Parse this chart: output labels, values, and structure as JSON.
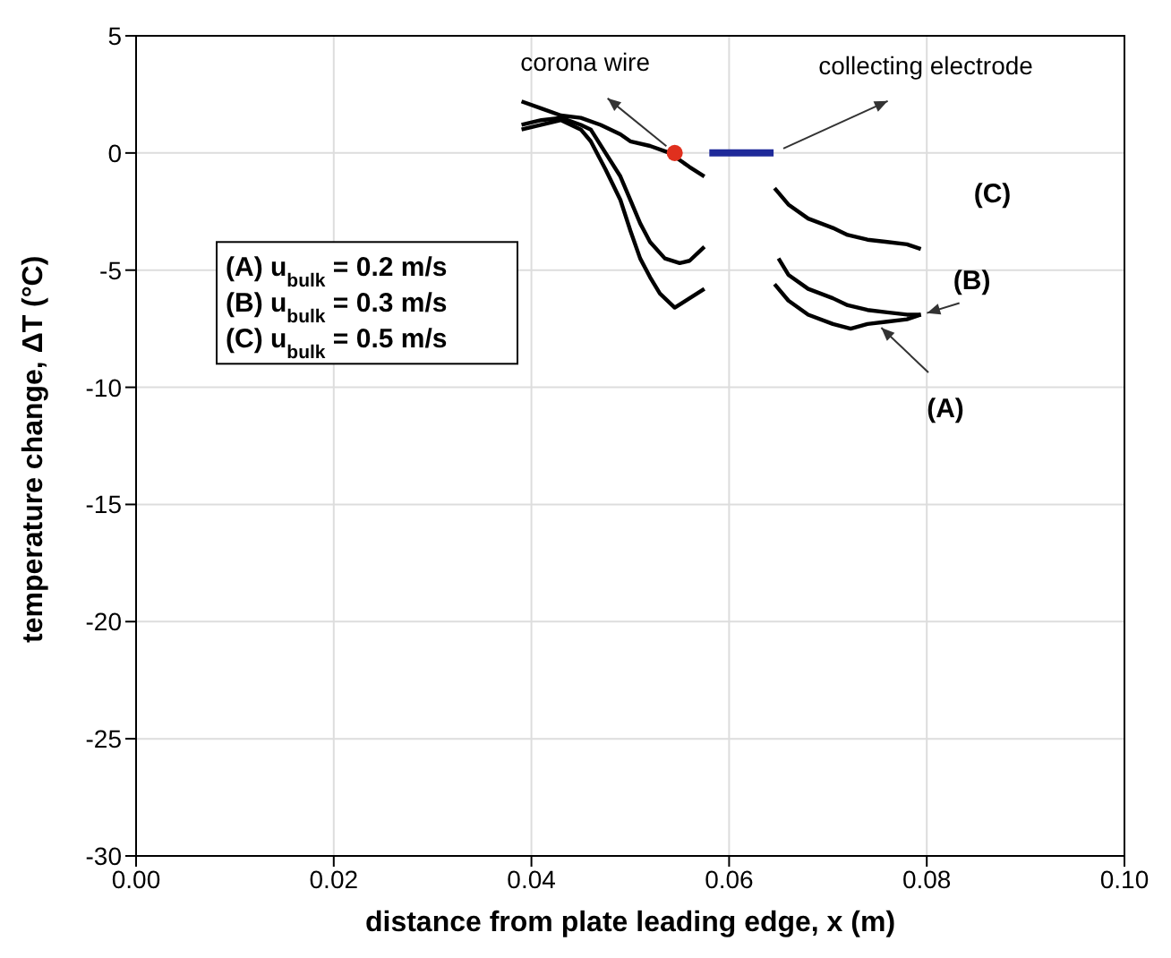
{
  "chart_data": {
    "type": "line",
    "xlabel": "distance from plate leading edge, x (m)",
    "ylabel": "temperature change, ΔT (°C)",
    "xlim": [
      0,
      0.1
    ],
    "ylim": [
      -30,
      5
    ],
    "xticks": [
      {
        "value": 0,
        "label": "0.00"
      },
      {
        "value": 0.02,
        "label": "0.02"
      },
      {
        "value": 0.04,
        "label": "0.04"
      },
      {
        "value": 0.06,
        "label": "0.06"
      },
      {
        "value": 0.08,
        "label": "0.08"
      },
      {
        "value": 0.1,
        "label": "0.10"
      }
    ],
    "yticks": [
      -30,
      -25,
      -20,
      -15,
      -10,
      -5,
      0,
      5
    ],
    "grid": true,
    "legend": false,
    "marker": "none",
    "line_style": "solid",
    "series": [
      {
        "color": "#000000",
        "x": [
          0.039,
          0.041,
          0.043,
          0.045,
          0.046,
          0.0475,
          0.049,
          0.05,
          0.051,
          0.052,
          0.053,
          0.0545,
          0.056,
          0.0575,
          0.061,
          0.0646,
          0.066,
          0.068,
          0.0705,
          0.0723,
          0.074,
          0.076,
          0.078,
          0.0794
        ],
        "values": [
          1.0,
          1.2,
          1.4,
          1.0,
          0.5,
          -0.7,
          -2.0,
          -3.3,
          -4.5,
          -5.3,
          -6.0,
          -6.6,
          -6.2,
          -5.8,
          null,
          -5.6,
          -6.3,
          -6.9,
          -7.3,
          -7.5,
          -7.3,
          -7.2,
          -7.1,
          -6.9
        ]
      },
      {
        "color": "#000000",
        "x": [
          0.039,
          0.041,
          0.043,
          0.045,
          0.046,
          0.0475,
          0.049,
          0.05,
          0.051,
          0.052,
          0.0535,
          0.055,
          0.056,
          0.0575,
          0.061,
          0.065,
          0.066,
          0.068,
          0.0705,
          0.072,
          0.074,
          0.076,
          0.078,
          0.0794
        ],
        "values": [
          1.2,
          1.4,
          1.5,
          1.2,
          1.0,
          0.0,
          -1.0,
          -2.0,
          -3.0,
          -3.8,
          -4.5,
          -4.7,
          -4.6,
          -4.0,
          null,
          -4.5,
          -5.2,
          -5.8,
          -6.2,
          -6.5,
          -6.7,
          -6.8,
          -6.9,
          -6.9
        ]
      },
      {
        "color": "#000000",
        "x": [
          0.039,
          0.041,
          0.043,
          0.045,
          0.047,
          0.049,
          0.05,
          0.052,
          0.054,
          0.056,
          0.0575,
          0.061,
          0.0646,
          0.066,
          0.068,
          0.0705,
          0.072,
          0.074,
          0.076,
          0.078,
          0.0794
        ],
        "values": [
          2.2,
          1.9,
          1.6,
          1.5,
          1.2,
          0.8,
          0.5,
          0.3,
          0.0,
          -0.6,
          -1.0,
          null,
          -1.5,
          -2.2,
          -2.8,
          -3.2,
          -3.5,
          -3.7,
          -3.8,
          -3.9,
          -4.1
        ]
      },
      {
        "color": "#1f2a9a",
        "x": [
          0.058,
          0.0645
        ],
        "values": [
          0,
          0
        ]
      },
      {
        "type": "scatter",
        "marker": "circle",
        "color": "#e0301e",
        "x": [
          0.0545
        ],
        "values": [
          0
        ]
      }
    ],
    "annotations": [
      {
        "text": "corona wire",
        "x": 0.0545,
        "y": 0
      },
      {
        "text": "collecting electrode",
        "x": 0.0645,
        "y": 0
      },
      {
        "text": "(A)",
        "x": 0.075,
        "y": -7.3
      },
      {
        "text": "(B)",
        "x": 0.0795,
        "y": -6.9
      },
      {
        "text": "(C)",
        "x": 0.0794,
        "y": -4.1
      },
      "(A) u$_{bulk}$ = 0.2 m/s",
      "(B) u$_{bulk}$ = 0.3 m/s",
      "(C) u$_{bulk}$ = 0.5 m/s"
    ]
  }
}
